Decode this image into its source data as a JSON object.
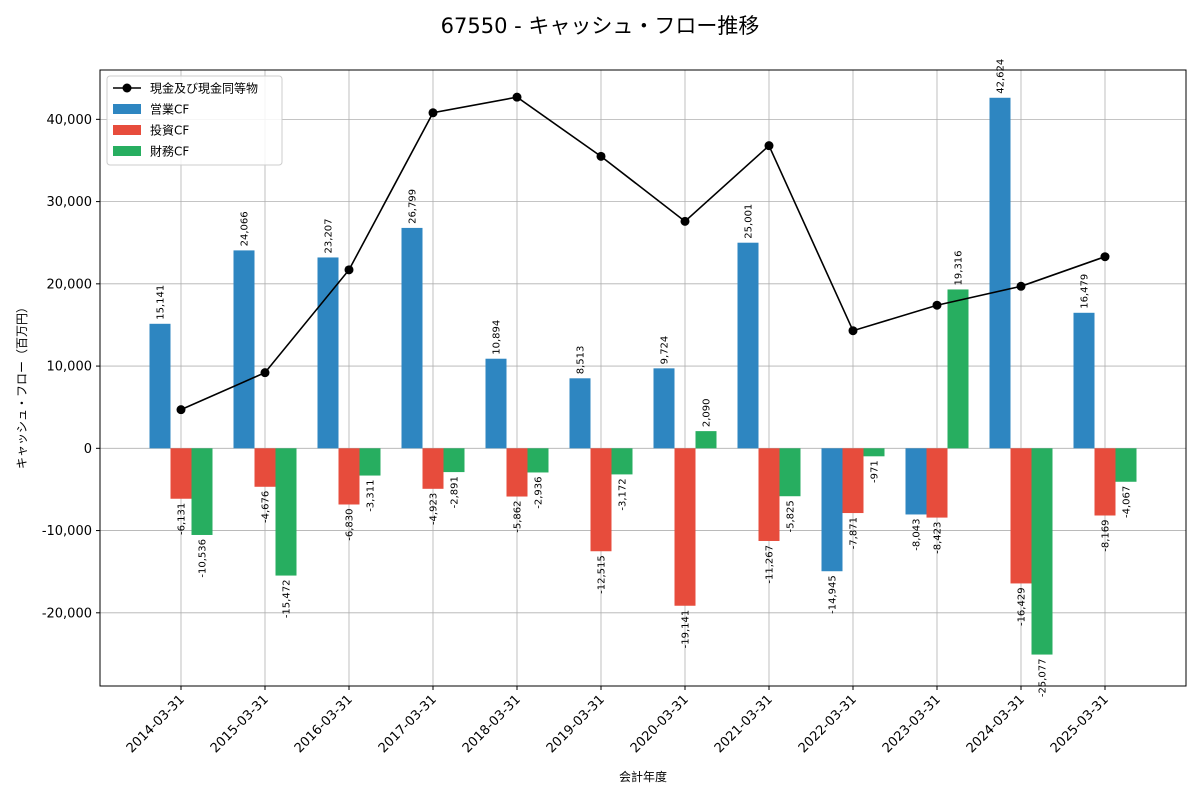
{
  "chart_data": {
    "type": "bar",
    "title": "67550 - キャッシュ・フロー推移",
    "xlabel": "会計年度",
    "ylabel": "キャッシュ・フロー（百万円）",
    "categories": [
      "2014-03-31",
      "2015-03-31",
      "2016-03-31",
      "2017-03-31",
      "2018-03-31",
      "2019-03-31",
      "2020-03-31",
      "2021-03-31",
      "2022-03-31",
      "2023-03-31",
      "2024-03-31",
      "2025-03-31"
    ],
    "series": [
      {
        "name": "営業CF",
        "type": "bar",
        "color": "#2e86c1",
        "values": [
          15141,
          24066,
          23207,
          26799,
          10894,
          8513,
          9724,
          25001,
          -14945,
          -8043,
          42624,
          16479
        ],
        "labels": [
          "15,141",
          "24,066",
          "23,207",
          "26,799",
          "10,894",
          "8,513",
          "9,724",
          "25,001",
          "-14,945",
          "-8,043",
          "42,624",
          "16,479"
        ]
      },
      {
        "name": "投資CF",
        "type": "bar",
        "color": "#e74c3c",
        "values": [
          -6131,
          -4676,
          -6830,
          -4923,
          -5862,
          -12515,
          -19141,
          -11267,
          -7871,
          -8423,
          -16429,
          -8169
        ],
        "labels": [
          "-6,131",
          "-4,676",
          "-6,830",
          "-4,923",
          "-5,862",
          "-12,515",
          "-19,141",
          "-11,267",
          "-7,871",
          "-8,423",
          "-16,429",
          "-8,169"
        ]
      },
      {
        "name": "財務CF",
        "type": "bar",
        "color": "#27ae60",
        "values": [
          -10536,
          -15472,
          -3311,
          -2891,
          -2936,
          -3172,
          2090,
          -5825,
          -971,
          19316,
          -25077,
          -4067
        ],
        "labels": [
          "-10,536",
          "-15,472",
          "-3,311",
          "-2,891",
          "-2,936",
          "-3,172",
          "2,090",
          "-5,825",
          "-971",
          "19,316",
          "-25,077",
          "-4,067"
        ]
      },
      {
        "name": "現金及び現金同等物",
        "type": "line",
        "color": "#000000",
        "values": [
          4700,
          9200,
          21700,
          40800,
          42700,
          35500,
          27600,
          36800,
          14300,
          17400,
          19700,
          23300
        ]
      }
    ],
    "ylim": [
      -28900,
      46000
    ],
    "yticks": [
      -20000,
      -10000,
      0,
      10000,
      20000,
      30000,
      40000
    ],
    "ytick_labels": [
      "-20,000",
      "-10,000",
      "0",
      "10,000",
      "20,000",
      "30,000",
      "40,000"
    ],
    "grid": true,
    "legend_position": "top-left"
  }
}
